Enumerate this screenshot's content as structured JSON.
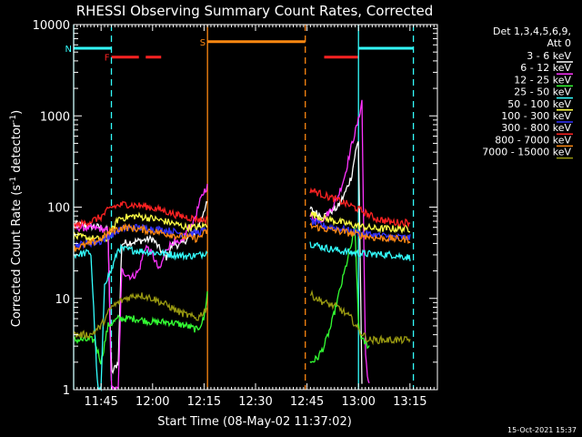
{
  "chart_data": {
    "type": "line",
    "title": "RHESSI Observing Summary Count Rates, Corrected",
    "xlabel": "Start Time (08-May-02 11:37:02)",
    "ylabel_main": "Corrected Count Rate (s",
    "ylabel_sup1": "-1",
    "ylabel_mid": " detector",
    "ylabel_sup2": "-1",
    "ylabel_end": ")",
    "x_ticks": [
      "11:45",
      "12:00",
      "12:15",
      "12:30",
      "12:45",
      "13:00",
      "13:15"
    ],
    "x_tick_minutes": [
      705,
      720,
      735,
      750,
      765,
      780,
      795
    ],
    "xlim_minutes": [
      697.0,
      803.0
    ],
    "y_scale": "log",
    "ylim": [
      1,
      10000
    ],
    "y_ticks": [
      "1",
      "10",
      "100",
      "1000",
      "10000"
    ],
    "legend_title_1": "Det 1,3,4,5,6,9,",
    "legend_title_2": "Att 0",
    "series": [
      {
        "name": "3 - 6 keV",
        "color": "#ffffff",
        "segments": [
          [
            [
              697,
              65
            ],
            [
              705,
              60
            ],
            [
              707,
              55
            ],
            [
              708,
              1.5
            ],
            [
              710,
              2
            ],
            [
              711,
              40
            ],
            [
              715,
              42
            ],
            [
              720,
              45
            ],
            [
              722,
              35
            ],
            [
              724,
              28
            ],
            [
              726,
              40
            ],
            [
              728,
              38
            ],
            [
              730,
              45
            ],
            [
              732,
              50
            ],
            [
              734,
              70
            ],
            [
              735,
              95
            ],
            [
              736,
              110
            ]
          ],
          [
            [
              766,
              95
            ],
            [
              768,
              85
            ],
            [
              770,
              80
            ],
            [
              772,
              90
            ],
            [
              774,
              100
            ],
            [
              776,
              140
            ],
            [
              778,
              220
            ],
            [
              779,
              380
            ],
            [
              780,
              550
            ],
            [
              781,
              1.2
            ]
          ]
        ]
      },
      {
        "name": "6 - 12 keV",
        "color": "#ff33ff",
        "segments": [
          [
            [
              697,
              60
            ],
            [
              705,
              58
            ],
            [
              707,
              55
            ],
            [
              708,
              1
            ],
            [
              710,
              1
            ],
            [
              711,
              20
            ],
            [
              714,
              17
            ],
            [
              716,
              20
            ],
            [
              718,
              38
            ],
            [
              720,
              30
            ],
            [
              722,
              20
            ],
            [
              724,
              35
            ],
            [
              726,
              42
            ],
            [
              728,
              38
            ],
            [
              730,
              55
            ],
            [
              732,
              70
            ],
            [
              734,
              120
            ],
            [
              735,
              150
            ],
            [
              736,
              170
            ]
          ],
          [
            [
              766,
              80
            ],
            [
              768,
              72
            ],
            [
              770,
              75
            ],
            [
              772,
              95
            ],
            [
              774,
              130
            ],
            [
              776,
              220
            ],
            [
              778,
              480
            ],
            [
              780,
              900
            ],
            [
              781,
              1500
            ],
            [
              782,
              2.5
            ],
            [
              783,
              1.1
            ]
          ]
        ]
      },
      {
        "name": "12 - 25 keV",
        "color": "#33ff33",
        "segments": [
          [
            [
              697,
              3.5
            ],
            [
              703,
              3.5
            ],
            [
              705,
              2
            ],
            [
              707,
              5
            ],
            [
              710,
              6
            ],
            [
              715,
              6
            ],
            [
              720,
              5.5
            ],
            [
              725,
              5.5
            ],
            [
              730,
              5
            ],
            [
              733,
              4.5
            ],
            [
              735,
              6
            ],
            [
              736,
              12
            ]
          ],
          [
            [
              766,
              2
            ],
            [
              768,
              2.2
            ],
            [
              770,
              3
            ],
            [
              772,
              5
            ],
            [
              774,
              10
            ],
            [
              776,
              20
            ],
            [
              778,
              40
            ],
            [
              779,
              60
            ],
            [
              780,
              5
            ],
            [
              781,
              3.5
            ],
            [
              783,
              3
            ]
          ]
        ]
      },
      {
        "name": "25 - 50 keV",
        "color": "#33ffff",
        "segments": [
          [
            [
              697,
              30
            ],
            [
              702,
              32
            ],
            [
              704,
              1
            ],
            [
              705,
              1
            ],
            [
              706,
              15
            ],
            [
              708,
              20
            ],
            [
              710,
              35
            ],
            [
              720,
              32
            ],
            [
              730,
              29
            ],
            [
              734,
              30
            ],
            [
              736,
              33
            ]
          ],
          [
            [
              766,
              40
            ],
            [
              770,
              36
            ],
            [
              775,
              33
            ],
            [
              780,
              31
            ],
            [
              790,
              30
            ],
            [
              795,
              28
            ]
          ]
        ]
      },
      {
        "name": "50 - 100 keV",
        "color": "#ffff44",
        "segments": [
          [
            [
              697,
              48
            ],
            [
              705,
              44
            ],
            [
              707,
              45
            ],
            [
              710,
              75
            ],
            [
              715,
              80
            ],
            [
              720,
              75
            ],
            [
              725,
              68
            ],
            [
              730,
              60
            ],
            [
              734,
              60
            ],
            [
              736,
              65
            ]
          ],
          [
            [
              766,
              85
            ],
            [
              770,
              75
            ],
            [
              775,
              68
            ],
            [
              780,
              62
            ],
            [
              785,
              58
            ],
            [
              790,
              58
            ],
            [
              795,
              58
            ]
          ]
        ]
      },
      {
        "name": "100 - 300 keV",
        "color": "#3333ff",
        "segments": [
          [
            [
              697,
              38
            ],
            [
              705,
              42
            ],
            [
              708,
              50
            ],
            [
              711,
              58
            ],
            [
              715,
              60
            ],
            [
              720,
              58
            ],
            [
              725,
              55
            ],
            [
              730,
              50
            ],
            [
              735,
              55
            ],
            [
              736,
              58
            ]
          ],
          [
            [
              766,
              70
            ],
            [
              770,
              62
            ],
            [
              775,
              58
            ],
            [
              780,
              52
            ],
            [
              790,
              47
            ],
            [
              795,
              46
            ]
          ]
        ]
      },
      {
        "name": "300 - 800 keV",
        "color": "#ff2222",
        "segments": [
          [
            [
              697,
              62
            ],
            [
              702,
              70
            ],
            [
              705,
              78
            ],
            [
              708,
              100
            ],
            [
              712,
              108
            ],
            [
              718,
              102
            ],
            [
              723,
              92
            ],
            [
              728,
              80
            ],
            [
              732,
              75
            ],
            [
              735,
              72
            ],
            [
              736,
              75
            ]
          ],
          [
            [
              766,
              155
            ],
            [
              770,
              135
            ],
            [
              775,
              115
            ],
            [
              780,
              95
            ],
            [
              785,
              75
            ],
            [
              790,
              68
            ],
            [
              795,
              68
            ]
          ]
        ]
      },
      {
        "name": "800 - 7000 keV",
        "color": "#ff8811",
        "segments": [
          [
            [
              697,
              35
            ],
            [
              702,
              40
            ],
            [
              705,
              45
            ],
            [
              708,
              55
            ],
            [
              712,
              60
            ],
            [
              718,
              56
            ],
            [
              723,
              52
            ],
            [
              728,
              48
            ],
            [
              733,
              45
            ],
            [
              736,
              55
            ]
          ],
          [
            [
              766,
              62
            ],
            [
              770,
              58
            ],
            [
              775,
              54
            ],
            [
              780,
              50
            ],
            [
              785,
              46
            ],
            [
              790,
              45
            ],
            [
              795,
              44
            ]
          ]
        ]
      },
      {
        "name": "7000 - 15000 keV",
        "color": "#999911",
        "segments": [
          [
            [
              697,
              4
            ],
            [
              702,
              4
            ],
            [
              705,
              5
            ],
            [
              708,
              8
            ],
            [
              712,
              10
            ],
            [
              716,
              11
            ],
            [
              720,
              10
            ],
            [
              724,
              8.5
            ],
            [
              728,
              7
            ],
            [
              733,
              6
            ],
            [
              736,
              8
            ]
          ],
          [
            [
              766,
              11
            ],
            [
              770,
              9
            ],
            [
              774,
              8
            ],
            [
              778,
              6
            ],
            [
              780,
              4.5
            ],
            [
              783,
              3.5
            ],
            [
              790,
              3.5
            ],
            [
              795,
              3.5
            ]
          ]
        ]
      }
    ],
    "attenuator_lines": [
      {
        "minutes": 736,
        "color": "#ff8811",
        "style": "solid"
      },
      {
        "minutes": 764.5,
        "color": "#ff8811",
        "style": "dash"
      },
      {
        "minutes": 697,
        "color": "#33ffff",
        "style": "solid"
      },
      {
        "minutes": 708,
        "color": "#33ffff",
        "style": "dash"
      },
      {
        "minutes": 780,
        "color": "#33ffff",
        "style": "solid"
      },
      {
        "minutes": 796,
        "color": "#33ffff",
        "style": "dash"
      }
    ],
    "status_bars": [
      {
        "label": "N",
        "color": "#33ffff",
        "y": 5500,
        "ranges": [
          [
            697,
            708
          ]
        ]
      },
      {
        "label": "",
        "color": "#33ffff",
        "y": 5500,
        "ranges": [
          [
            780,
            796
          ]
        ]
      },
      {
        "label": "F",
        "color": "#ff2222",
        "y": 4400,
        "ranges": [
          [
            708,
            716
          ],
          [
            718,
            722.5
          ],
          [
            770,
            780
          ]
        ]
      },
      {
        "label": "S",
        "color": "#ff8811",
        "y": 6500,
        "ranges": [
          [
            736,
            764.5
          ]
        ]
      }
    ],
    "footer_date": "15-Oct-2021 15:37"
  }
}
